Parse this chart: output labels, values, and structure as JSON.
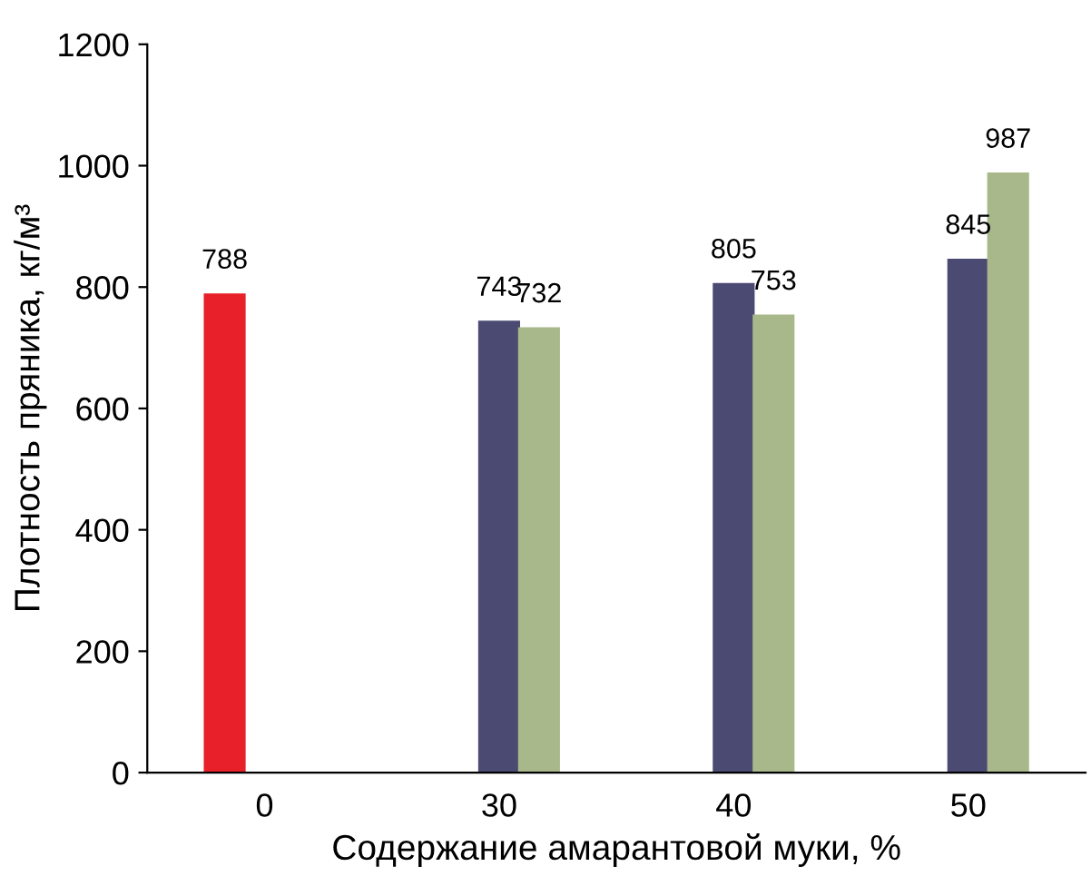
{
  "chart_data": {
    "type": "bar",
    "xlabel": "Содержание амарантовой муки, %",
    "ylabel": "Плотность пряника, кг/м³",
    "categories": [
      "0",
      "30",
      "40",
      "50"
    ],
    "series": [
      {
        "color": "#e8202a",
        "values": [
          788,
          0,
          0,
          0
        ],
        "value_labels": [
          "788",
          null,
          null,
          null
        ]
      },
      {
        "color": "#4b4a72",
        "values": [
          0,
          743,
          805,
          845
        ],
        "value_labels": [
          null,
          "743",
          "805",
          "845"
        ]
      },
      {
        "color": "#a8b88a",
        "values": [
          0,
          732,
          753,
          987
        ],
        "value_labels": [
          null,
          "732",
          "753",
          "987"
        ]
      }
    ],
    "ylim": [
      0,
      1200
    ],
    "yticks": [
      0,
      200,
      400,
      600,
      800,
      1000,
      1200
    ],
    "grid": false,
    "legend": false
  }
}
